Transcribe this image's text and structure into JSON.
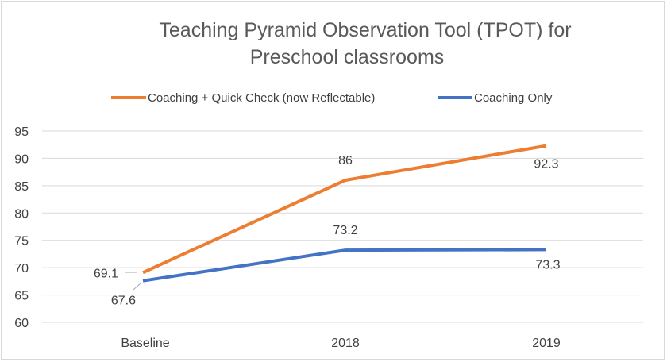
{
  "chart_data": {
    "type": "line",
    "title_lines": [
      "Teaching Pyramid Observation Tool (TPOT)  for",
      "Preschool classrooms"
    ],
    "categories": [
      "Baseline",
      "2018",
      "2019"
    ],
    "series": [
      {
        "name": "Coaching + Quick Check (now Reflectable)",
        "values": [
          69.1,
          86,
          92.3
        ],
        "labels": [
          "69.1",
          "86",
          "92.3"
        ],
        "color": "#ed7d31"
      },
      {
        "name": "Coaching Only",
        "values": [
          67.6,
          73.2,
          73.3
        ],
        "labels": [
          "67.6",
          "73.2",
          "73.3"
        ],
        "color": "#4472c4"
      }
    ],
    "ylim": [
      60,
      95
    ],
    "yticks": [
      "60",
      "65",
      "70",
      "75",
      "80",
      "85",
      "90",
      "95"
    ],
    "grid": true,
    "legend": "top"
  }
}
